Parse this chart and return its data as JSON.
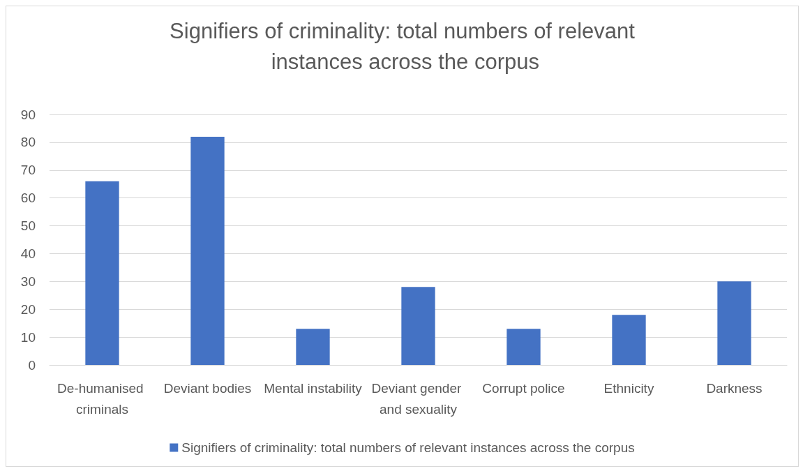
{
  "chart_data": {
    "type": "bar",
    "title": "Signifiers of criminality: total numbers of relevant instances across the corpus",
    "categories": [
      "De-humanised criminals",
      "Deviant bodies",
      "Mental instability",
      "Deviant gender and sexuality",
      "Corrupt police",
      "Ethnicity",
      "Darkness"
    ],
    "series": [
      {
        "name": "Signifiers of criminality: total numbers of relevant instances across the corpus",
        "color": "#4472c4",
        "values": [
          66,
          82,
          13,
          28,
          13,
          18,
          30
        ]
      }
    ],
    "ylim": [
      0,
      90
    ],
    "yticks": [
      0,
      10,
      20,
      30,
      40,
      50,
      60,
      70,
      80,
      90
    ],
    "grid": "y",
    "legend": "bottom"
  }
}
